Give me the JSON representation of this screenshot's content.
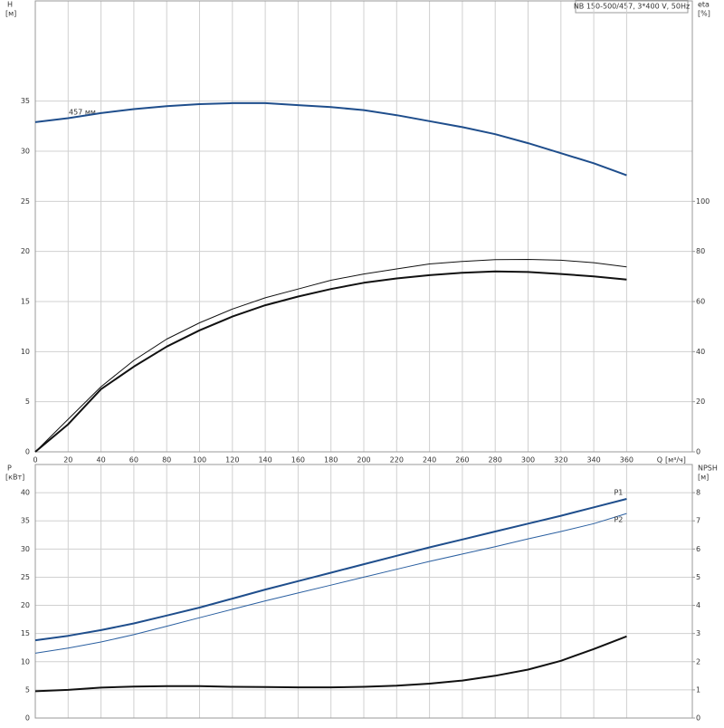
{
  "chart_data": [
    {
      "type": "line",
      "title": "NB 150-500/457, 3*400 V, 50Hz",
      "ylabel": "H",
      "yunit": "[м]",
      "y2label": "eta",
      "y2unit": "[%]",
      "xlabel": "Q",
      "xunit": "[м³/ч]",
      "annotation": "457 мм",
      "xlim": [
        0,
        400
      ],
      "xticks": [
        0,
        20,
        40,
        60,
        80,
        100,
        120,
        140,
        160,
        180,
        200,
        220,
        240,
        260,
        280,
        300,
        320,
        340,
        360
      ],
      "ylim": [
        0,
        45
      ],
      "yticks": [
        0,
        5,
        10,
        15,
        20,
        25,
        30,
        35
      ],
      "y2lim": [
        0,
        180
      ],
      "y2ticks": [
        0,
        20,
        40,
        60,
        80,
        100
      ],
      "x": [
        0,
        20,
        40,
        60,
        80,
        100,
        120,
        140,
        160,
        180,
        200,
        220,
        240,
        260,
        280,
        300,
        320,
        340,
        360
      ],
      "series": [
        {
          "color": "#1f4e8c",
          "line_width": 2,
          "axis": "y",
          "values": [
            32.9,
            33.3,
            33.8,
            34.2,
            34.5,
            34.7,
            34.8,
            34.8,
            34.6,
            34.4,
            34.1,
            33.6,
            33.0,
            32.4,
            31.7,
            30.8,
            29.8,
            28.8,
            27.6
          ]
        },
        {
          "color": "#111111",
          "line_width": 1,
          "axis": "y2",
          "values": [
            0,
            13,
            26,
            36.5,
            45,
            51.5,
            57,
            61.5,
            65,
            68.5,
            71,
            73,
            75,
            76,
            76.7,
            76.8,
            76.5,
            75.5,
            73.8
          ]
        },
        {
          "color": "#111111",
          "line_width": 2,
          "axis": "y2",
          "values": [
            0,
            11,
            25,
            34,
            42,
            48.5,
            54,
            58.5,
            62,
            65,
            67.5,
            69.2,
            70.5,
            71.5,
            72,
            71.8,
            71,
            70,
            68.8
          ]
        }
      ]
    },
    {
      "type": "line",
      "ylabel": "P",
      "yunit": "[кВт]",
      "y2label": "NPSH",
      "y2unit": "[м]",
      "xlim": [
        0,
        400
      ],
      "ylim": [
        0,
        45
      ],
      "yticks": [
        0,
        5,
        10,
        15,
        20,
        25,
        30,
        35,
        40
      ],
      "y2lim": [
        0,
        9
      ],
      "y2ticks": [
        0,
        1,
        2,
        3,
        4,
        5,
        6,
        7,
        8
      ],
      "x": [
        0,
        20,
        40,
        60,
        80,
        100,
        120,
        140,
        160,
        180,
        200,
        220,
        240,
        260,
        280,
        300,
        320,
        340,
        360
      ],
      "series": [
        {
          "name": "P1",
          "color": "#1f4e8c",
          "line_width": 2,
          "axis": "y",
          "values": [
            13.8,
            14.6,
            15.6,
            16.8,
            18.2,
            19.6,
            21.2,
            22.8,
            24.3,
            25.8,
            27.3,
            28.8,
            30.3,
            31.7,
            33.1,
            34.5,
            35.9,
            37.4,
            38.9
          ]
        },
        {
          "name": "P2",
          "color": "#2a5fa0",
          "line_width": 1,
          "axis": "y",
          "values": [
            11.5,
            12.4,
            13.5,
            14.8,
            16.3,
            17.8,
            19.3,
            20.8,
            22.2,
            23.6,
            25,
            26.4,
            27.8,
            29.1,
            30.4,
            31.8,
            33.1,
            34.5,
            36.3
          ]
        },
        {
          "color": "#111111",
          "line_width": 2,
          "axis": "y2",
          "values": [
            0.95,
            1.0,
            1.08,
            1.12,
            1.13,
            1.13,
            1.11,
            1.1,
            1.09,
            1.09,
            1.11,
            1.15,
            1.22,
            1.33,
            1.5,
            1.72,
            2.03,
            2.45,
            2.9
          ]
        }
      ]
    }
  ]
}
